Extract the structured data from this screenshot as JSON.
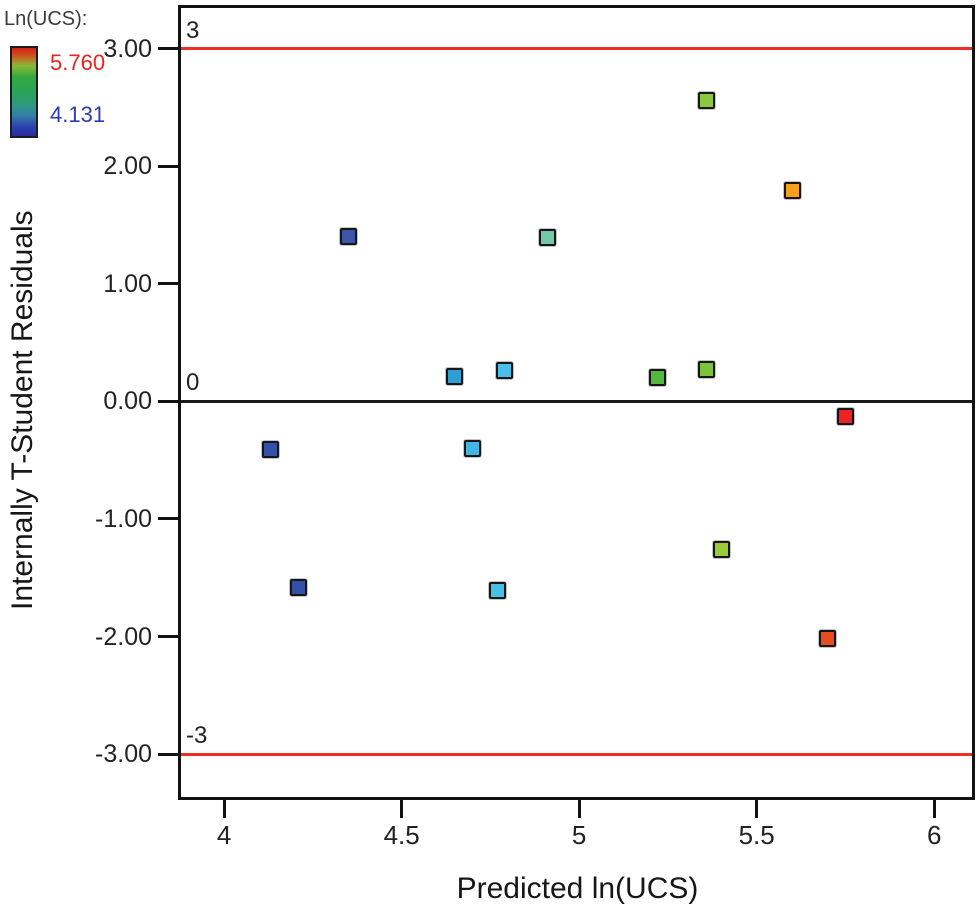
{
  "figure": {
    "background": "#ffffff"
  },
  "chart_data": {
    "type": "scatter",
    "marker": "square",
    "xlabel": "Predicted ln(UCS)",
    "ylabel": "Internally T-Student Residuals",
    "xlim": [
      3.87,
      6.115
    ],
    "ylim": [
      -3.39,
      3.37
    ],
    "grid": false,
    "x_ticks": [
      {
        "v": 4,
        "label": "4"
      },
      {
        "v": 4.5,
        "label": "4.5"
      },
      {
        "v": 5,
        "label": "5"
      },
      {
        "v": 5.5,
        "label": "5.5"
      },
      {
        "v": 6,
        "label": "6"
      }
    ],
    "y_ticks": [
      {
        "v": 3,
        "label": "3.00"
      },
      {
        "v": 2,
        "label": "2.00"
      },
      {
        "v": 1,
        "label": "1.00"
      },
      {
        "v": 0,
        "label": "0.00"
      },
      {
        "v": -1,
        "label": "-1.00"
      },
      {
        "v": -2,
        "label": "-2.00"
      },
      {
        "v": -3,
        "label": "-3.00"
      }
    ],
    "reference_lines": [
      {
        "y": 3,
        "label": "3",
        "color": "#ee2e24"
      },
      {
        "y": 0,
        "label": "0",
        "color": "#1a1a1a"
      },
      {
        "y": -3,
        "label": "-3",
        "color": "#ee2e24"
      }
    ],
    "color_scale": {
      "title": "Ln(UCS):",
      "position": "top-left",
      "max": 5.76,
      "max_label": "5.760",
      "max_label_color": "#e82320",
      "min": 4.131,
      "min_label": "4.131",
      "min_label_color": "#2c3cb5",
      "gradient_top_color": "#d81f17",
      "gradient_bottom_color": "#282ba0"
    },
    "points": [
      {
        "x": 4.13,
        "y": -0.41,
        "color": "#3350a5"
      },
      {
        "x": 4.21,
        "y": -1.58,
        "color": "#3350a5"
      },
      {
        "x": 4.35,
        "y": 1.4,
        "color": "#3c55ab"
      },
      {
        "x": 4.65,
        "y": 0.21,
        "color": "#2f9fd3"
      },
      {
        "x": 4.7,
        "y": -0.4,
        "color": "#41b6e3"
      },
      {
        "x": 4.77,
        "y": -1.61,
        "color": "#45c1e8"
      },
      {
        "x": 4.79,
        "y": 0.26,
        "color": "#4abde8"
      },
      {
        "x": 4.91,
        "y": 1.39,
        "color": "#72c8a9"
      },
      {
        "x": 5.22,
        "y": 0.2,
        "color": "#55b83e"
      },
      {
        "x": 5.36,
        "y": 0.27,
        "color": "#7ec13d"
      },
      {
        "x": 5.36,
        "y": 2.56,
        "color": "#8dc63f"
      },
      {
        "x": 5.4,
        "y": -1.26,
        "color": "#9aca36"
      },
      {
        "x": 5.6,
        "y": 1.79,
        "color": "#f7a01c"
      },
      {
        "x": 5.7,
        "y": -2.02,
        "color": "#e84e1d"
      },
      {
        "x": 5.75,
        "y": -0.13,
        "color": "#ec2227"
      }
    ]
  }
}
